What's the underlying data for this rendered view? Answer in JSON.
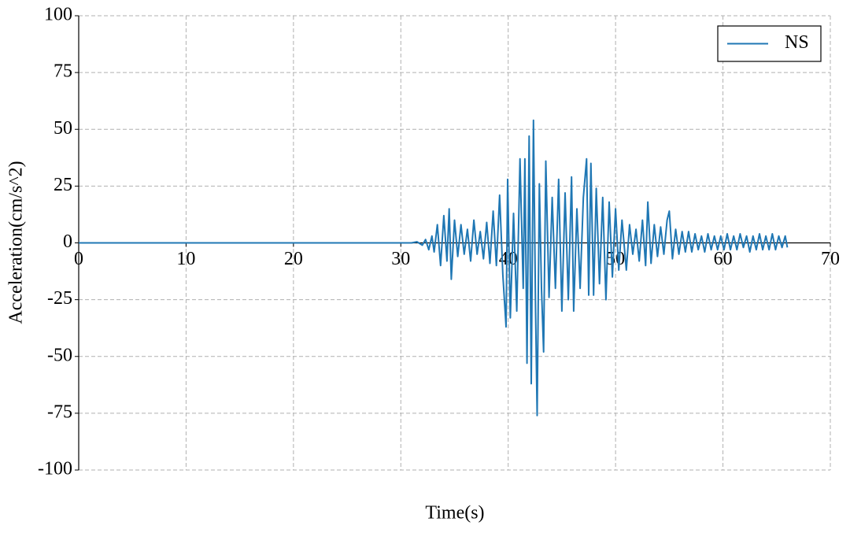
{
  "chart_data": {
    "type": "line",
    "x_label": "Time(s)",
    "y_label": "Acceleration(cm/s^2)",
    "xlim": [
      0,
      70
    ],
    "xticks": [
      0,
      10,
      20,
      30,
      40,
      50,
      60,
      70
    ],
    "ylim": [
      -100,
      100
    ],
    "yticks": [
      -100,
      -75,
      -50,
      -25,
      0,
      25,
      50,
      75,
      100
    ],
    "grid": true,
    "legend": "upper right",
    "x": [
      0,
      31,
      31.5,
      32,
      32.3,
      32.6,
      32.9,
      33.1,
      33.4,
      33.7,
      34,
      34.3,
      34.5,
      34.7,
      35,
      35.3,
      35.6,
      35.9,
      36.2,
      36.5,
      36.8,
      37.1,
      37.4,
      37.7,
      38,
      38.3,
      38.6,
      38.9,
      39.2,
      39.5,
      39.8,
      39.95,
      40.2,
      40.5,
      40.8,
      41.1,
      41.4,
      41.55,
      41.75,
      41.95,
      42.15,
      42.35,
      42.55,
      42.7,
      42.9,
      43.1,
      43.3,
      43.5,
      43.8,
      44.1,
      44.4,
      44.7,
      45,
      45.3,
      45.6,
      45.9,
      46.1,
      46.4,
      46.7,
      47,
      47.3,
      47.5,
      47.7,
      47.95,
      48.2,
      48.5,
      48.8,
      49.1,
      49.4,
      49.7,
      50,
      50.3,
      50.6,
      51,
      51.3,
      51.6,
      51.9,
      52.2,
      52.5,
      52.8,
      53,
      53.3,
      53.6,
      53.9,
      54.2,
      54.5,
      54.8,
      55,
      55.3,
      55.6,
      55.9,
      56.2,
      56.5,
      56.8,
      57.1,
      57.4,
      57.7,
      58,
      58.3,
      58.6,
      58.9,
      59.2,
      59.5,
      59.8,
      60.1,
      60.4,
      60.7,
      61,
      61.3,
      61.6,
      61.9,
      62.2,
      62.5,
      62.8,
      63.1,
      63.4,
      63.7,
      64,
      64.3,
      64.6,
      64.9,
      65.2,
      65.5,
      65.8,
      66
    ],
    "series": [
      {
        "name": "NS",
        "color": "#1f77b4",
        "values": [
          0,
          0,
          0.5,
          -1,
          1.5,
          -3,
          3,
          -4,
          8,
          -10,
          12,
          -8,
          15,
          -16,
          10,
          -6,
          8,
          -5,
          6,
          -8,
          10,
          -5,
          5,
          -7,
          9,
          -9,
          14,
          -10,
          21,
          -14,
          -37,
          28,
          -33,
          13,
          -30,
          37,
          -20,
          37,
          -53,
          47,
          -62,
          54,
          -30,
          -76,
          26,
          -20,
          -48,
          36,
          -24,
          20,
          -20,
          28,
          -30,
          22,
          -25,
          29,
          -30,
          15,
          -20,
          20,
          37,
          -23,
          35,
          -23,
          24,
          -18,
          20,
          -25,
          18,
          -15,
          15,
          -12,
          10,
          -12,
          8,
          -5,
          6,
          -8,
          10,
          -10,
          18,
          -9,
          8,
          -6,
          7,
          -5,
          10,
          14,
          -7,
          6,
          -5,
          5,
          -4,
          5,
          -4,
          4,
          -3,
          3,
          -4,
          4,
          -3,
          3,
          -3,
          3,
          -3,
          4,
          -3,
          3,
          -3,
          4,
          -2,
          3,
          -4,
          3,
          -3,
          4,
          -3,
          3,
          -3,
          4,
          -3,
          3,
          -2,
          3,
          -2
        ]
      }
    ]
  }
}
